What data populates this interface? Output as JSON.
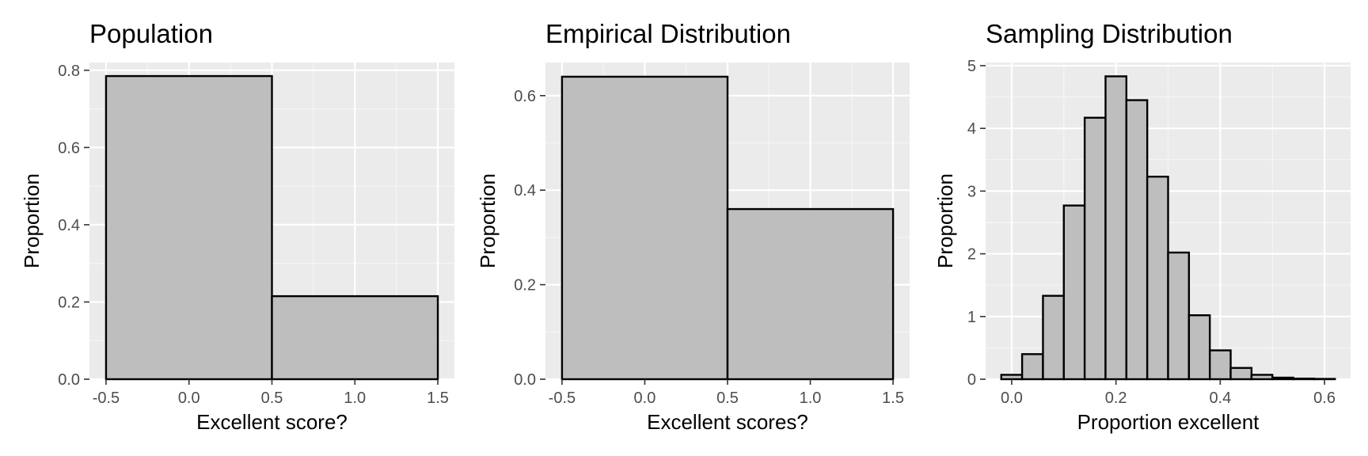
{
  "colors": {
    "panel_background": "#ebebeb",
    "grid_major": "#ffffff",
    "grid_minor": "#f5f5f5",
    "bar_fill": "#bebebe",
    "bar_outline": "#000000",
    "tick_text": "#4d4d4d",
    "title_text": "#000000"
  },
  "chart_data": [
    {
      "type": "bar",
      "title": "Population",
      "xlabel": "Excellent score?",
      "ylabel": "Proportion",
      "xlim": [
        -0.6,
        1.6
      ],
      "ylim": [
        0,
        0.82
      ],
      "x_ticks": [
        -0.5,
        0.0,
        0.5,
        1.0,
        1.5
      ],
      "x_tick_labels": [
        "-0.5",
        "0.0",
        "0.5",
        "1.0",
        "1.5"
      ],
      "y_ticks": [
        0.0,
        0.2,
        0.4,
        0.6,
        0.8
      ],
      "y_tick_labels": [
        "0.0",
        "0.2",
        "0.4",
        "0.6",
        "0.8"
      ],
      "grid": true,
      "bins": [
        {
          "x0": -0.5,
          "x1": 0.5,
          "value": 0.785
        },
        {
          "x0": 0.5,
          "x1": 1.5,
          "value": 0.215
        }
      ]
    },
    {
      "type": "bar",
      "title": "Empirical Distribution",
      "xlabel": "Excellent scores?",
      "ylabel": "Proportion",
      "xlim": [
        -0.6,
        1.6
      ],
      "ylim": [
        0,
        0.67
      ],
      "x_ticks": [
        -0.5,
        0.0,
        0.5,
        1.0,
        1.5
      ],
      "x_tick_labels": [
        "-0.5",
        "0.0",
        "0.5",
        "1.0",
        "1.5"
      ],
      "y_ticks": [
        0.0,
        0.2,
        0.4,
        0.6
      ],
      "y_tick_labels": [
        "0.0",
        "0.2",
        "0.4",
        "0.6"
      ],
      "grid": true,
      "bins": [
        {
          "x0": -0.5,
          "x1": 0.5,
          "value": 0.64
        },
        {
          "x0": 0.5,
          "x1": 1.5,
          "value": 0.36
        }
      ]
    },
    {
      "type": "bar",
      "title": "Sampling Distribution",
      "xlabel": "Proportion excellent",
      "ylabel": "Proportion",
      "xlim": [
        -0.05,
        0.65
      ],
      "ylim": [
        0,
        5.05
      ],
      "x_ticks": [
        0.0,
        0.2,
        0.4,
        0.6
      ],
      "x_tick_labels": [
        "0.0",
        "0.2",
        "0.4",
        "0.6"
      ],
      "y_ticks": [
        0,
        1,
        2,
        3,
        4,
        5
      ],
      "y_tick_labels": [
        "0",
        "1",
        "2",
        "3",
        "4",
        "5"
      ],
      "grid": true,
      "bins": [
        {
          "x0": -0.02,
          "x1": 0.02,
          "value": 0.07
        },
        {
          "x0": 0.02,
          "x1": 0.06,
          "value": 0.4
        },
        {
          "x0": 0.06,
          "x1": 0.1,
          "value": 1.33
        },
        {
          "x0": 0.1,
          "x1": 0.14,
          "value": 2.77
        },
        {
          "x0": 0.14,
          "x1": 0.18,
          "value": 4.17
        },
        {
          "x0": 0.18,
          "x1": 0.22,
          "value": 4.83
        },
        {
          "x0": 0.22,
          "x1": 0.26,
          "value": 4.45
        },
        {
          "x0": 0.26,
          "x1": 0.3,
          "value": 3.23
        },
        {
          "x0": 0.3,
          "x1": 0.34,
          "value": 2.02
        },
        {
          "x0": 0.34,
          "x1": 0.38,
          "value": 1.02
        },
        {
          "x0": 0.38,
          "x1": 0.42,
          "value": 0.46
        },
        {
          "x0": 0.42,
          "x1": 0.46,
          "value": 0.18
        },
        {
          "x0": 0.46,
          "x1": 0.5,
          "value": 0.07
        },
        {
          "x0": 0.5,
          "x1": 0.54,
          "value": 0.025
        },
        {
          "x0": 0.54,
          "x1": 0.58,
          "value": 0.01
        },
        {
          "x0": 0.58,
          "x1": 0.62,
          "value": 0.005
        }
      ]
    }
  ]
}
